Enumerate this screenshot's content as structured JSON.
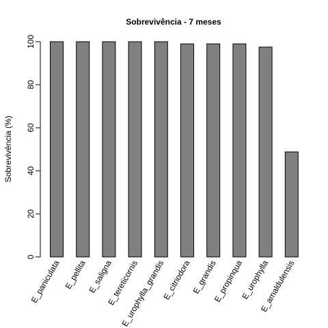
{
  "chart_data": {
    "type": "bar",
    "title": "Sobrevivência - 7 meses",
    "xlabel": "",
    "ylabel": "Sobrevivência (%)",
    "ylim": [
      0,
      100
    ],
    "yticks": [
      0,
      20,
      40,
      60,
      80,
      100
    ],
    "categories": [
      "E_paniculata",
      "E_pellita",
      "E_saligna",
      "E_tereticornis",
      "E_urophylla_grandis",
      "E_citriodora",
      "E_grandis",
      "E_propinqua",
      "E_urophylla",
      "E_amaldulensis"
    ],
    "values": [
      100,
      100,
      100,
      100,
      100,
      99,
      99,
      99,
      97.5,
      48.8
    ],
    "grid": false,
    "colors": {
      "bar_fill": "#808080",
      "bar_stroke": "#000000"
    }
  }
}
